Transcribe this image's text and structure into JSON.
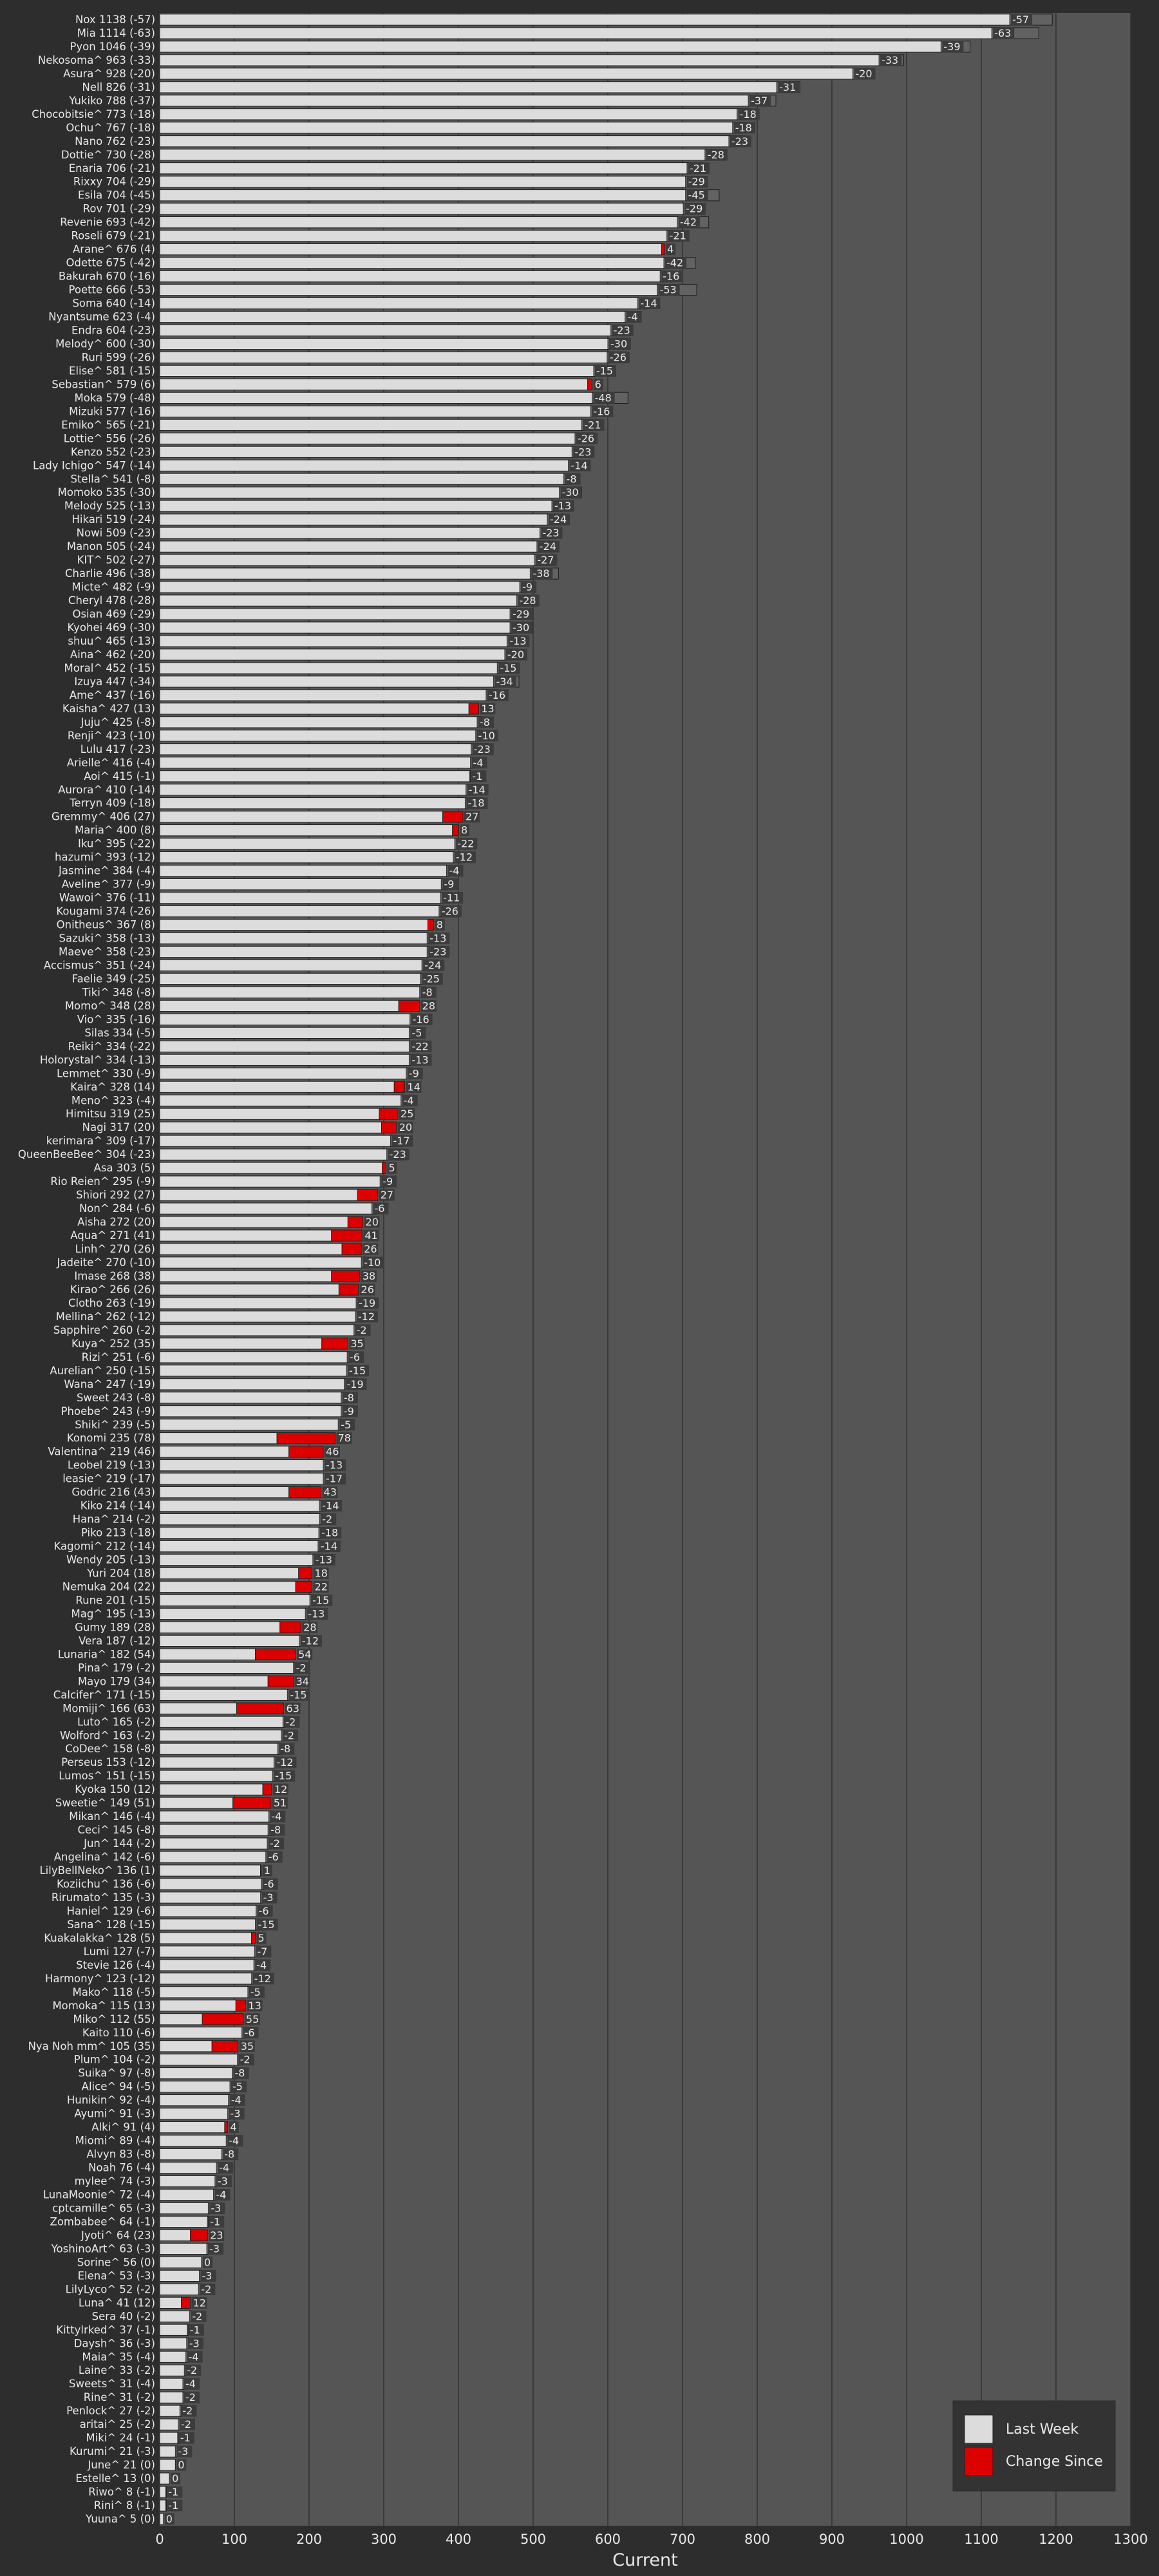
{
  "colors": {
    "page_bg": "#2d2d2d",
    "plot_bg": "#555555",
    "grid": "#3a3a3a",
    "last_week_fill": "#dcdcdc",
    "change_up_fill": "#dd0000",
    "bar_edge": "#222222",
    "text": "#e8e8e8"
  },
  "chart_data": {
    "type": "bar",
    "orientation": "horizontal",
    "stacked": true,
    "xlabel": "Current",
    "xlim": [
      0,
      1300
    ],
    "xticks": [
      0,
      100,
      200,
      300,
      400,
      500,
      600,
      700,
      800,
      900,
      1000,
      1100,
      1200,
      1300
    ],
    "grid": "vertical",
    "legend": {
      "placement": "bottom-right",
      "entries": [
        "Last Week",
        "Change Since"
      ]
    },
    "series_names": [
      "Last Week",
      "Change Since"
    ],
    "categories": [
      "Nox 1138 (-57)",
      "Mia 1114 (-63)",
      "Pyon 1046 (-39)",
      "Nekosoma^ 963 (-33)",
      "Asura^ 928 (-20)",
      "Nell 826 (-31)",
      "Yukiko 788 (-37)",
      "Chocobitsie^ 773 (-18)",
      "Ochu^ 767 (-18)",
      "Nano 762 (-23)",
      "Dottie^ 730 (-28)",
      "Enaria 706 (-21)",
      "Rixxy 704 (-29)",
      "Esila 704 (-45)",
      "Rov 701 (-29)",
      "Revenie 693 (-42)",
      "Roseli 679 (-21)",
      "Arane^ 676 (4)",
      "Odette 675 (-42)",
      "Bakurah 670 (-16)",
      "Poette 666 (-53)",
      "Soma 640 (-14)",
      "Nyantsume 623 (-4)",
      "Endra 604 (-23)",
      "Melody^ 600 (-30)",
      "Ruri 599 (-26)",
      "Elise^ 581 (-15)",
      "Sebastian^ 579 (6)",
      "Moka 579 (-48)",
      "Mizuki 577 (-16)",
      "Emiko^ 565 (-21)",
      "Lottie^ 556 (-26)",
      "Kenzo 552 (-23)",
      "Lady Ichigo^ 547 (-14)",
      "Stella^ 541 (-8)",
      "Momoko 535 (-30)",
      "Melody 525 (-13)",
      "Hikari 519 (-24)",
      "Nowi 509 (-23)",
      "Manon 505 (-24)",
      "KIT^ 502 (-27)",
      "Charlie 496 (-38)",
      "Micte^ 482 (-9)",
      "Cheryl 478 (-28)",
      "Osian 469 (-29)",
      "Kyohei 469 (-30)",
      "shuu^ 465 (-13)",
      "Aina^ 462 (-20)",
      "Moral^ 452 (-15)",
      "Izuya 447 (-34)",
      "Ame^ 437 (-16)",
      "Kaisha^ 427 (13)",
      "Juju^ 425 (-8)",
      "Renji^ 423 (-10)",
      "Lulu 417 (-23)",
      "Arielle^ 416 (-4)",
      "Aoi^ 415 (-1)",
      "Aurora^ 410 (-14)",
      "Terryn 409 (-18)",
      "Gremmy^ 406 (27)",
      "Maria^ 400 (8)",
      "Iku^ 395 (-22)",
      "hazumi^ 393 (-12)",
      "Jasmine^ 384 (-4)",
      "Aveline^ 377 (-9)",
      "Wawoi^ 376 (-11)",
      "Kougami 374 (-26)",
      "Onitheus^ 367 (8)",
      "Sazuki^ 358 (-13)",
      "Maeve^ 358 (-23)",
      "Accismus^ 351 (-24)",
      "Faelie 349 (-25)",
      "Tiki^ 348 (-8)",
      "Momo^ 348 (28)",
      "Vio^ 335 (-16)",
      "Silas 334 (-5)",
      "Reiki^ 334 (-22)",
      "Holorystal^ 334 (-13)",
      "Lemmet^ 330 (-9)",
      "Kaira^ 328 (14)",
      "Meno^ 323 (-4)",
      "Himitsu 319 (25)",
      "Nagi 317 (20)",
      "kerimara^ 309 (-17)",
      "QueenBeeBee^ 304 (-23)",
      "Asa 303 (5)",
      "Rio Reien^ 295 (-9)",
      "Shiori 292 (27)",
      "Non^ 284 (-6)",
      "Aisha 272 (20)",
      "Aqua^ 271 (41)",
      "Linh^ 270 (26)",
      "Jadeite^ 270 (-10)",
      "Imase 268 (38)",
      "Kirao^ 266 (26)",
      "Clotho 263 (-19)",
      "Mellina^ 262 (-12)",
      "Sapphire^ 260 (-2)",
      "Kuya^ 252 (35)",
      "Rizi^ 251 (-6)",
      "Aurelian^ 250 (-15)",
      "Wana^ 247 (-19)",
      "Sweet 243 (-8)",
      "Phoebe^ 243 (-9)",
      "Shiki^ 239 (-5)",
      "Konomi 235 (78)",
      "Valentina^ 219 (46)",
      "Leobel 219 (-13)",
      "leasie^ 219 (-17)",
      "Godric 216 (43)",
      "Kiko 214 (-14)",
      "Hana^ 214 (-2)",
      "Piko 213 (-18)",
      "Kagomi^ 212 (-14)",
      "Wendy 205 (-13)",
      "Yuri 204 (18)",
      "Nemuka 204 (22)",
      "Rune 201 (-15)",
      "Mag^ 195 (-13)",
      "Gumy 189 (28)",
      "Vera 187 (-12)",
      "Lunaria^ 182 (54)",
      "Pina^ 179 (-2)",
      "Mayo 179 (34)",
      "Calcifer^ 171 (-15)",
      "Momiji^ 166 (63)",
      "Luto^ 165 (-2)",
      "Wolford^ 163 (-2)",
      "CoDee^ 158 (-8)",
      "Perseus 153 (-12)",
      "Lumos^ 151 (-15)",
      "Kyoka 150 (12)",
      "Sweetie^ 149 (51)",
      "Mikan^ 146 (-4)",
      "Ceci^ 145 (-8)",
      "Jun^ 144 (-2)",
      "Angelina^ 142 (-6)",
      "LilyBellNeko^ 136 (1)",
      "Koziichu^ 136 (-6)",
      "Rirumato^ 135 (-3)",
      "Haniel^ 129 (-6)",
      "Sana^ 128 (-15)",
      "Kuakalakka^ 128 (5)",
      "Lumi 127 (-7)",
      "Stevie 126 (-4)",
      "Harmony^ 123 (-12)",
      "Mako^ 118 (-5)",
      "Momoka^ 115 (13)",
      "Miko^ 112 (55)",
      "Kaito 110 (-6)",
      "Nya Noh mm^ 105 (35)",
      "Plum^ 104 (-2)",
      "Suika^ 97 (-8)",
      "Alice^ 94 (-5)",
      "Hunikin^ 92 (-4)",
      "Ayumi^ 91 (-3)",
      "Alki^ 91 (4)",
      "Miomi^ 89 (-4)",
      "Alvyn 83 (-8)",
      "Noah 76 (-4)",
      "mylee^ 74 (-3)",
      "LunaMoonie^ 72 (-4)",
      "cptcamille^ 65 (-3)",
      "Zombabee^ 64 (-1)",
      "Jyoti^ 64 (23)",
      "YoshinoArt^ 63 (-3)",
      "Sorine^ 56 (0)",
      "Elena^ 53 (-3)",
      "LilyLyco^ 52 (-2)",
      "Luna^ 41 (12)",
      "Sera 40 (-2)",
      "Kittylrked^ 37 (-1)",
      "Daysh^ 36 (-3)",
      "Maia^ 35 (-4)",
      "Laine^ 33 (-2)",
      "Sweets^ 31 (-4)",
      "Rine^ 31 (-2)",
      "Penlock^ 27 (-2)",
      "aritai^ 25 (-2)",
      "Miki^ 24 (-1)",
      "Kurumi^ 21 (-3)",
      "June^ 21 (0)",
      "Estelle^ 13 (0)",
      "Riwo^ 8 (-1)",
      "Rini^ 8 (-1)",
      "Yuuna^ 5 (0)"
    ],
    "current": [
      1138,
      1114,
      1046,
      963,
      928,
      826,
      788,
      773,
      767,
      762,
      730,
      706,
      704,
      704,
      701,
      693,
      679,
      676,
      675,
      670,
      666,
      640,
      623,
      604,
      600,
      599,
      581,
      579,
      579,
      577,
      565,
      556,
      552,
      547,
      541,
      535,
      525,
      519,
      509,
      505,
      502,
      496,
      482,
      478,
      469,
      469,
      465,
      462,
      452,
      447,
      437,
      427,
      425,
      423,
      417,
      416,
      415,
      410,
      409,
      406,
      400,
      395,
      393,
      384,
      377,
      376,
      374,
      367,
      358,
      358,
      351,
      349,
      348,
      348,
      335,
      334,
      334,
      334,
      330,
      328,
      323,
      319,
      317,
      309,
      304,
      303,
      295,
      292,
      284,
      272,
      271,
      270,
      270,
      268,
      266,
      263,
      262,
      260,
      252,
      251,
      250,
      247,
      243,
      243,
      239,
      235,
      219,
      219,
      219,
      216,
      214,
      214,
      213,
      212,
      205,
      204,
      204,
      201,
      195,
      189,
      187,
      182,
      179,
      179,
      171,
      166,
      165,
      163,
      158,
      153,
      151,
      150,
      149,
      146,
      145,
      144,
      142,
      136,
      136,
      135,
      129,
      128,
      128,
      127,
      126,
      123,
      118,
      115,
      112,
      110,
      105,
      104,
      97,
      94,
      92,
      91,
      91,
      89,
      83,
      76,
      74,
      72,
      65,
      64,
      64,
      63,
      56,
      53,
      52,
      41,
      40,
      37,
      36,
      35,
      33,
      31,
      31,
      27,
      25,
      24,
      21,
      21,
      13,
      8,
      8,
      5
    ],
    "change": [
      -57,
      -63,
      -39,
      -33,
      -20,
      -31,
      -37,
      -18,
      -18,
      -23,
      -28,
      -21,
      -29,
      -45,
      -29,
      -42,
      -21,
      4,
      -42,
      -16,
      -53,
      -14,
      -4,
      -23,
      -30,
      -26,
      -15,
      6,
      -48,
      -16,
      -21,
      -26,
      -23,
      -14,
      -8,
      -30,
      -13,
      -24,
      -23,
      -24,
      -27,
      -38,
      -9,
      -28,
      -29,
      -30,
      -13,
      -20,
      -15,
      -34,
      -16,
      13,
      -8,
      -10,
      -23,
      -4,
      -1,
      -14,
      -18,
      27,
      8,
      -22,
      -12,
      -4,
      -9,
      -11,
      -26,
      8,
      -13,
      -23,
      -24,
      -25,
      -8,
      28,
      -16,
      -5,
      -22,
      -13,
      -9,
      14,
      -4,
      25,
      20,
      -17,
      -23,
      5,
      -9,
      27,
      -6,
      20,
      41,
      26,
      -10,
      38,
      26,
      -19,
      -12,
      -2,
      35,
      -6,
      -15,
      -19,
      -8,
      -9,
      -5,
      78,
      46,
      -13,
      -17,
      43,
      -14,
      -2,
      -18,
      -14,
      -13,
      18,
      22,
      -15,
      -13,
      28,
      -12,
      54,
      -2,
      34,
      -15,
      63,
      -2,
      -2,
      -8,
      -12,
      -15,
      12,
      51,
      -4,
      -8,
      -2,
      -6,
      1,
      -6,
      -3,
      -6,
      -15,
      5,
      -7,
      -4,
      -12,
      -5,
      13,
      55,
      -6,
      35,
      -2,
      -8,
      -5,
      -4,
      -3,
      4,
      -4,
      -8,
      -4,
      -3,
      -4,
      -3,
      -1,
      23,
      -3,
      0,
      -3,
      -2,
      12,
      -2,
      -1,
      -3,
      -4,
      -2,
      -4,
      -2,
      -2,
      -2,
      -1,
      -3,
      0,
      0,
      -1,
      -1,
      0
    ]
  }
}
